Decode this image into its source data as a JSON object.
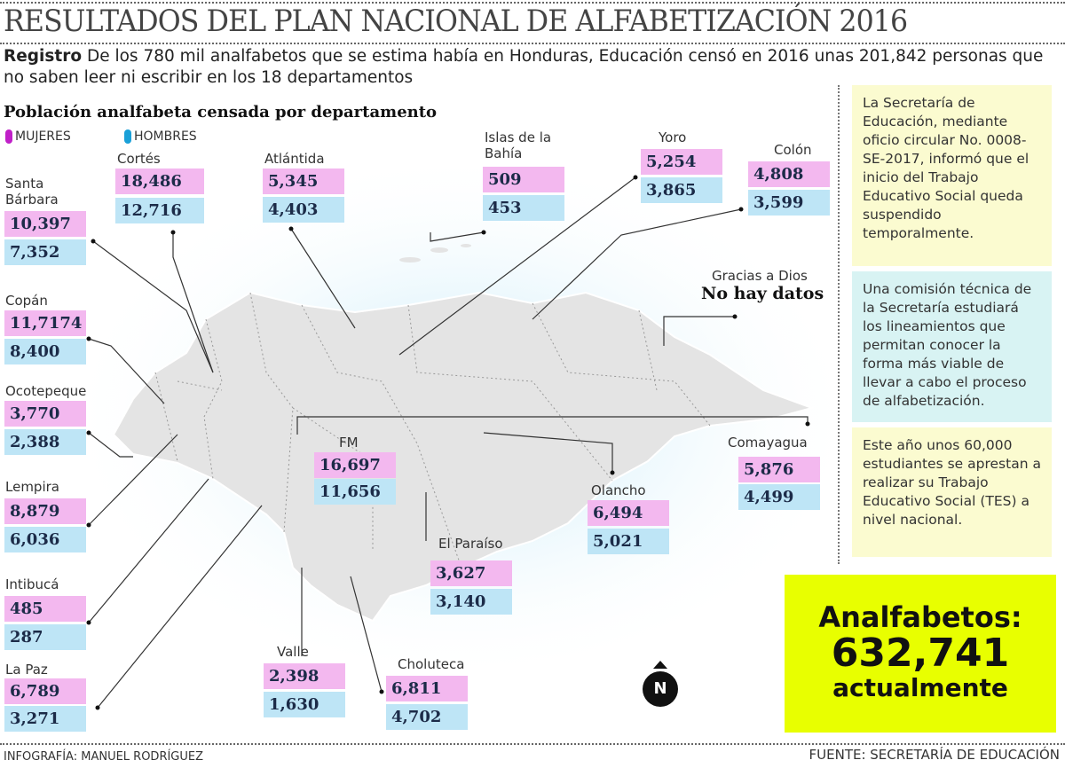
{
  "title": "RESULTADOS DEL PLAN NACIONAL DE ALFABETIZACIÓN 2016",
  "intro": {
    "lead": "Registro",
    "text": " De los 780 mil analfabetos que se estima había  en Honduras, Educación censó en 2016 unas 201,842 personas que no saben leer ni escribir en los 18 departamentos"
  },
  "subtitle": "Población analfabeta censada por departamento",
  "legend": {
    "women": "MUJERES",
    "men": "HOMBRES",
    "women_color": "#c020c8",
    "men_color": "#1aa0d8"
  },
  "departments": {
    "cortes": {
      "name": "Cortés",
      "mujeres": "18,486",
      "hombres": "12,716"
    },
    "santa_barbara": {
      "name": "Santa Bárbara",
      "mujeres": "10,397",
      "hombres": "7,352"
    },
    "atlantida": {
      "name": "Atlántida",
      "mujeres": "5,345",
      "hombres": "4,403"
    },
    "islas": {
      "name": "Islas de la Bahía",
      "mujeres": "509",
      "hombres": "453"
    },
    "yoro": {
      "name": "Yoro",
      "mujeres": "5,254",
      "hombres": "3,865"
    },
    "colon": {
      "name": "Colón",
      "mujeres": "4,808",
      "hombres": "3,599"
    },
    "gracias": {
      "name": "Gracias a Dios",
      "note": "No hay datos"
    },
    "copan": {
      "name": "Copán",
      "mujeres": "11,7174",
      "hombres": "8,400"
    },
    "ocotepeque": {
      "name": "Ocotepeque",
      "mujeres": "3,770",
      "hombres": "2,388"
    },
    "lempira": {
      "name": "Lempira",
      "mujeres": "8,879",
      "hombres": "6,036"
    },
    "intibuca": {
      "name": "Intibucá",
      "mujeres": "485",
      "hombres": "287"
    },
    "la_paz": {
      "name": "La Paz",
      "mujeres": "6,789",
      "hombres": "3,271"
    },
    "fm": {
      "name": "FM",
      "mujeres": "16,697",
      "hombres": "11,656"
    },
    "olancho": {
      "name": "Olancho",
      "mujeres": "6,494",
      "hombres": "5,021"
    },
    "comayagua": {
      "name": "Comayagua",
      "mujeres": "5,876",
      "hombres": "4,499"
    },
    "el_paraiso": {
      "name": "El Paraíso",
      "mujeres": "3,627",
      "hombres": "3,140"
    },
    "valle": {
      "name": "Valle",
      "mujeres": "2,398",
      "hombres": "1,630"
    },
    "choluteca": {
      "name": "Choluteca",
      "mujeres": "6,811",
      "hombres": "4,702"
    }
  },
  "side": [
    "La Secretaría de Educación, mediante oficio circular No. 0008-SE-2017, informó que el inicio del Trabajo Educativo Social queda suspendido temporalmente.",
    "Una comisión técnica de la Secretaría estudiará los lineamientos que permitan conocer la forma más viable de llevar a cabo el proceso de alfabetización.",
    "Este año unos 60,000 estudiantes se aprestan a realizar su Trabajo Educativo Social (TES) a nivel nacional."
  ],
  "total": {
    "label": "Analfabetos:",
    "value": "632,741",
    "suffix": "actualmente"
  },
  "compass": "N",
  "credit": "INFOGRAFÍA: MANUEL RODRÍGUEZ",
  "source": "FUENTE: SECRETARÍA DE EDUCACIÓN"
}
